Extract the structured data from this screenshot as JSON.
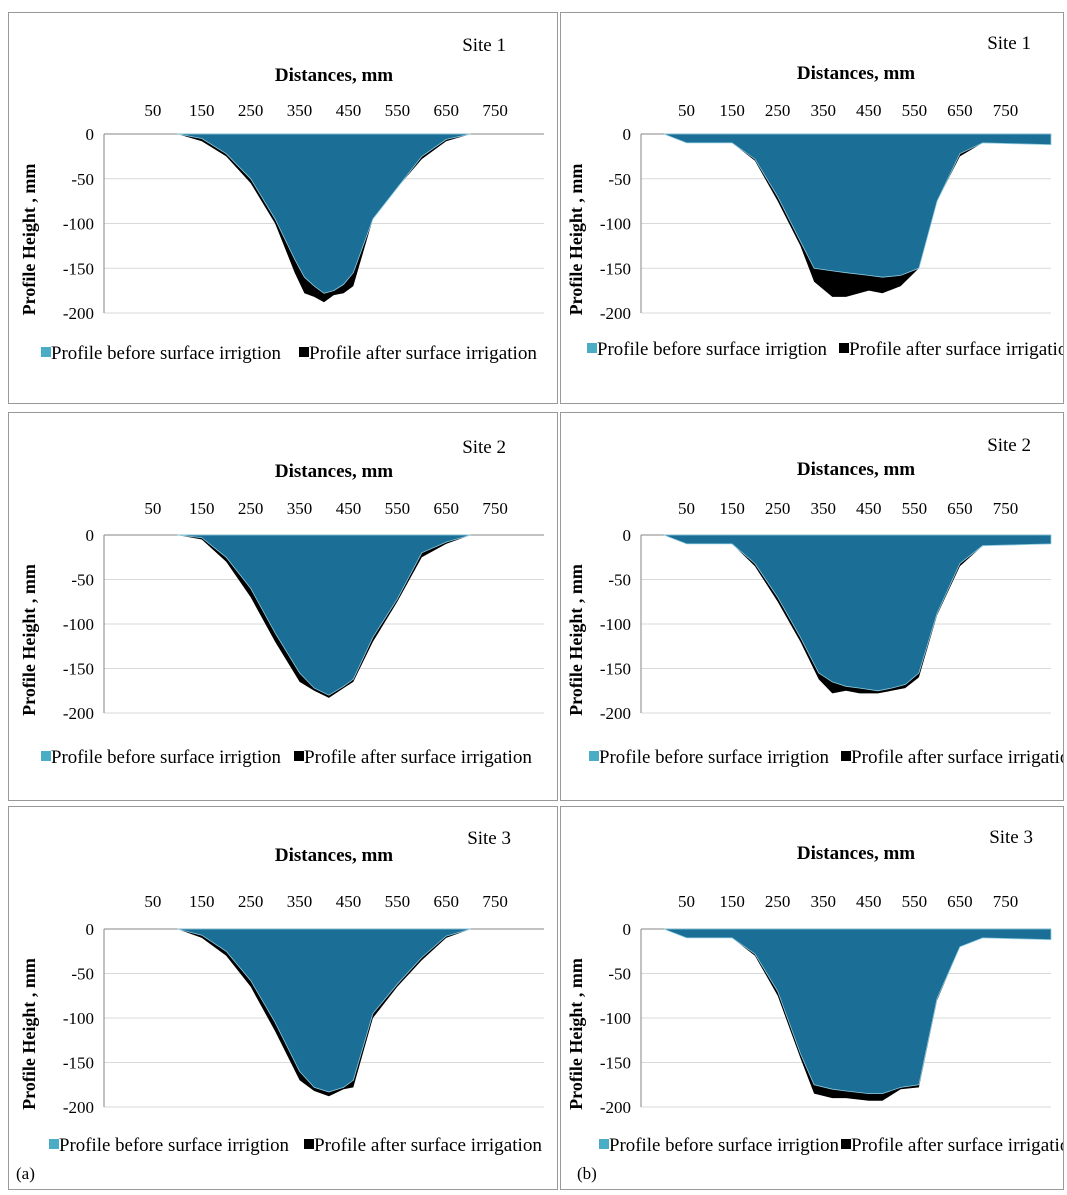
{
  "labels": {
    "left": "(a)",
    "right": "(b)"
  },
  "colors": {
    "before": "#1B6F97",
    "after": "#000000",
    "legend_before": "#4BACC6",
    "axis": "#868686",
    "grid": "#D9D9D9"
  },
  "chart_data": [
    {
      "type": "area",
      "title": "Site 1",
      "xlabel": "Distances, mm",
      "ylabel": "Profile Height , mm",
      "x_ticks": [
        "50",
        "150",
        "250",
        "350",
        "450",
        "550",
        "650",
        "750"
      ],
      "y_ticks": [
        "0",
        "-50",
        "-100",
        "-150",
        "-200"
      ],
      "ylim": [
        -200,
        0
      ],
      "xlim": [
        -50,
        850
      ],
      "legend": [
        "Profile before surface irrigtion",
        "Profile after surface irrigation"
      ],
      "series": [
        {
          "name": "Profile after surface irrigation",
          "x": [
            100,
            150,
            200,
            250,
            300,
            340,
            360,
            380,
            400,
            420,
            440,
            460,
            500,
            550,
            600,
            650,
            700
          ],
          "y": [
            0,
            -8,
            -25,
            -55,
            -100,
            -155,
            -178,
            -182,
            -188,
            -180,
            -178,
            -170,
            -95,
            -60,
            -28,
            -8,
            0
          ]
        },
        {
          "name": "Profile before surface irrigtion",
          "x": [
            100,
            150,
            200,
            250,
            300,
            340,
            360,
            380,
            400,
            420,
            440,
            460,
            500,
            550,
            600,
            650,
            700
          ],
          "y": [
            0,
            -5,
            -22,
            -50,
            -95,
            -140,
            -160,
            -170,
            -178,
            -175,
            -168,
            -155,
            -95,
            -60,
            -25,
            -6,
            0
          ]
        }
      ]
    },
    {
      "type": "area",
      "title": "Site 1",
      "xlabel": "Distances, mm",
      "ylabel": "Profile Height , mm",
      "x_ticks": [
        "50",
        "150",
        "250",
        "350",
        "450",
        "550",
        "650",
        "750"
      ],
      "y_ticks": [
        "0",
        "-50",
        "-100",
        "-150",
        "-200"
      ],
      "ylim": [
        -200,
        0
      ],
      "xlim": [
        -50,
        850
      ],
      "legend": [
        "Profile before surface irrigtion",
        "Profile after surface irrigation"
      ],
      "series": [
        {
          "name": "Profile after surface irrigation",
          "x": [
            0,
            50,
            100,
            150,
            200,
            250,
            300,
            330,
            370,
            400,
            450,
            480,
            520,
            560,
            600,
            650,
            700,
            850
          ],
          "y": [
            0,
            -10,
            -10,
            -10,
            -30,
            -75,
            -125,
            -165,
            -182,
            -182,
            -175,
            -178,
            -170,
            -150,
            -75,
            -25,
            -10,
            -12
          ]
        },
        {
          "name": "Profile before surface irrigtion",
          "x": [
            0,
            50,
            100,
            150,
            200,
            250,
            300,
            330,
            370,
            400,
            450,
            480,
            520,
            560,
            600,
            650,
            700,
            850
          ],
          "y": [
            0,
            -10,
            -10,
            -10,
            -28,
            -70,
            -120,
            -150,
            -153,
            -155,
            -158,
            -160,
            -158,
            -150,
            -75,
            -22,
            -10,
            -12
          ]
        }
      ]
    },
    {
      "type": "area",
      "title": "Site 2",
      "xlabel": "Distances, mm",
      "ylabel": "Profile Height , mm",
      "x_ticks": [
        "50",
        "150",
        "250",
        "350",
        "450",
        "550",
        "650",
        "750"
      ],
      "y_ticks": [
        "0",
        "-50",
        "-100",
        "-150",
        "-200"
      ],
      "ylim": [
        -200,
        0
      ],
      "xlim": [
        -50,
        850
      ],
      "legend": [
        "Profile before surface irrigtion",
        "Profile after surface irrigation"
      ],
      "series": [
        {
          "name": "Profile after surface irrigation",
          "x": [
            100,
            150,
            200,
            250,
            300,
            350,
            380,
            410,
            440,
            460,
            500,
            550,
            600,
            650,
            700
          ],
          "y": [
            0,
            -5,
            -30,
            -70,
            -120,
            -165,
            -175,
            -183,
            -172,
            -165,
            -120,
            -75,
            -25,
            -10,
            0
          ]
        },
        {
          "name": "Profile before surface irrigtion",
          "x": [
            100,
            150,
            200,
            250,
            300,
            350,
            380,
            410,
            440,
            460,
            500,
            550,
            600,
            650,
            700
          ],
          "y": [
            0,
            -3,
            -25,
            -60,
            -110,
            -155,
            -172,
            -180,
            -170,
            -162,
            -115,
            -72,
            -20,
            -8,
            0
          ]
        }
      ]
    },
    {
      "type": "area",
      "title": "Site 2",
      "xlabel": "Distances, mm",
      "ylabel": "Profile Height , mm",
      "x_ticks": [
        "50",
        "150",
        "250",
        "350",
        "450",
        "550",
        "650",
        "750"
      ],
      "y_ticks": [
        "0",
        "-50",
        "-100",
        "-150",
        "-200"
      ],
      "ylim": [
        -200,
        0
      ],
      "xlim": [
        -50,
        850
      ],
      "legend": [
        "Profile before surface irrigtion",
        "Profile after surface irrigation"
      ],
      "series": [
        {
          "name": "Profile after surface irrigation",
          "x": [
            0,
            50,
            100,
            150,
            200,
            250,
            300,
            340,
            370,
            400,
            430,
            470,
            500,
            530,
            560,
            600,
            650,
            700,
            850
          ],
          "y": [
            0,
            -10,
            -10,
            -10,
            -35,
            -75,
            -120,
            -162,
            -178,
            -175,
            -178,
            -178,
            -175,
            -172,
            -160,
            -90,
            -35,
            -12,
            -10
          ]
        },
        {
          "name": "Profile before surface irrigtion",
          "x": [
            0,
            50,
            100,
            150,
            200,
            250,
            300,
            340,
            370,
            400,
            430,
            470,
            500,
            530,
            560,
            600,
            650,
            700,
            850
          ],
          "y": [
            0,
            -10,
            -10,
            -10,
            -32,
            -70,
            -115,
            -155,
            -165,
            -170,
            -172,
            -175,
            -172,
            -168,
            -155,
            -88,
            -32,
            -12,
            -10
          ]
        }
      ]
    },
    {
      "type": "area",
      "title": "Site 3",
      "xlabel": "Distances, mm",
      "ylabel": "Profile Height , mm",
      "x_ticks": [
        "50",
        "150",
        "250",
        "350",
        "450",
        "550",
        "650",
        "750"
      ],
      "y_ticks": [
        "0",
        "-50",
        "-100",
        "-150",
        "-200"
      ],
      "ylim": [
        -200,
        0
      ],
      "xlim": [
        -50,
        850
      ],
      "legend": [
        "Profile before surface irrigtion",
        "Profile after surface irrigation"
      ],
      "series": [
        {
          "name": "Profile after surface irrigation",
          "x": [
            100,
            150,
            200,
            250,
            300,
            350,
            380,
            410,
            440,
            460,
            500,
            550,
            600,
            650,
            700
          ],
          "y": [
            0,
            -10,
            -30,
            -65,
            -115,
            -170,
            -182,
            -188,
            -180,
            -178,
            -100,
            -65,
            -35,
            -10,
            0
          ]
        },
        {
          "name": "Profile before surface irrigtion",
          "x": [
            100,
            150,
            200,
            250,
            300,
            350,
            380,
            410,
            440,
            460,
            500,
            550,
            600,
            650,
            700
          ],
          "y": [
            0,
            -7,
            -25,
            -58,
            -105,
            -160,
            -178,
            -183,
            -178,
            -170,
            -95,
            -62,
            -32,
            -8,
            0
          ]
        }
      ]
    },
    {
      "type": "area",
      "title": "Site 3",
      "xlabel": "Distances, mm",
      "ylabel": "Profile Height , mm",
      "x_ticks": [
        "50",
        "150",
        "250",
        "350",
        "450",
        "550",
        "650",
        "750"
      ],
      "y_ticks": [
        "0",
        "-50",
        "-100",
        "-150",
        "-200"
      ],
      "ylim": [
        -200,
        0
      ],
      "xlim": [
        -50,
        850
      ],
      "legend": [
        "Profile before surface irrigtion",
        "Profile after surface irrigation"
      ],
      "series": [
        {
          "name": "Profile after surface irrigation",
          "x": [
            0,
            50,
            100,
            150,
            200,
            250,
            300,
            330,
            370,
            400,
            450,
            480,
            520,
            560,
            600,
            650,
            700,
            850
          ],
          "y": [
            0,
            -10,
            -10,
            -10,
            -30,
            -75,
            -145,
            -185,
            -190,
            -190,
            -193,
            -193,
            -180,
            -178,
            -80,
            -20,
            -10,
            -12
          ]
        },
        {
          "name": "Profile before surface irrigtion",
          "x": [
            0,
            50,
            100,
            150,
            200,
            250,
            300,
            330,
            370,
            400,
            450,
            480,
            520,
            560,
            600,
            650,
            700,
            850
          ],
          "y": [
            0,
            -10,
            -10,
            -10,
            -28,
            -70,
            -140,
            -175,
            -180,
            -182,
            -185,
            -185,
            -178,
            -175,
            -78,
            -20,
            -10,
            -12
          ]
        }
      ]
    }
  ]
}
